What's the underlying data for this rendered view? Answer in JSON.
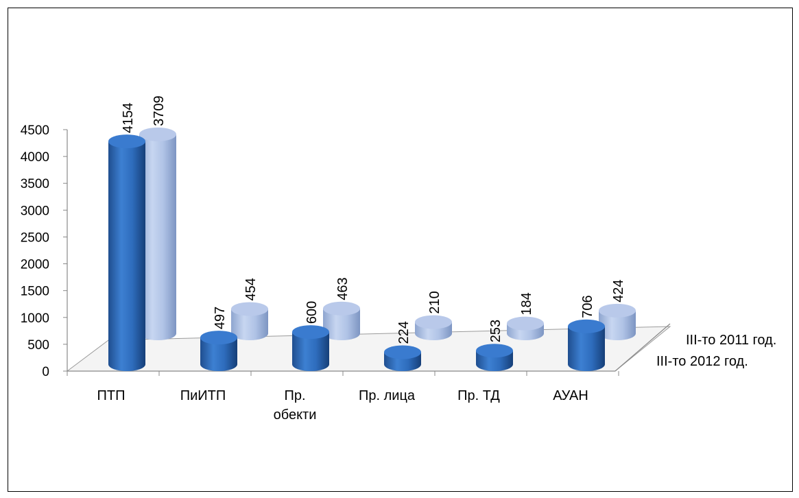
{
  "chart_data": {
    "type": "bar",
    "style": "3d-cylinder",
    "categories": [
      [
        "ПТП"
      ],
      [
        "ПиИТП"
      ],
      [
        "Пр.",
        "обекти"
      ],
      [
        "Пр. лица"
      ],
      [
        "Пр. ТД"
      ],
      [
        "АУАН"
      ]
    ],
    "series": [
      {
        "name": "III-то 2012 год.",
        "values": [
          4154,
          497,
          600,
          224,
          253,
          706
        ],
        "color": "#2f6fbf"
      },
      {
        "name": "III-то 2011 год.",
        "values": [
          3709,
          454,
          463,
          210,
          184,
          424
        ],
        "color": "#a9bde3"
      }
    ],
    "y_ticks": [
      "0",
      "500",
      "1000",
      "1500",
      "2000",
      "2500",
      "3000",
      "3500",
      "4000",
      "4500"
    ],
    "ylim": [
      0,
      4500
    ],
    "data_labels": true,
    "grid": false
  }
}
